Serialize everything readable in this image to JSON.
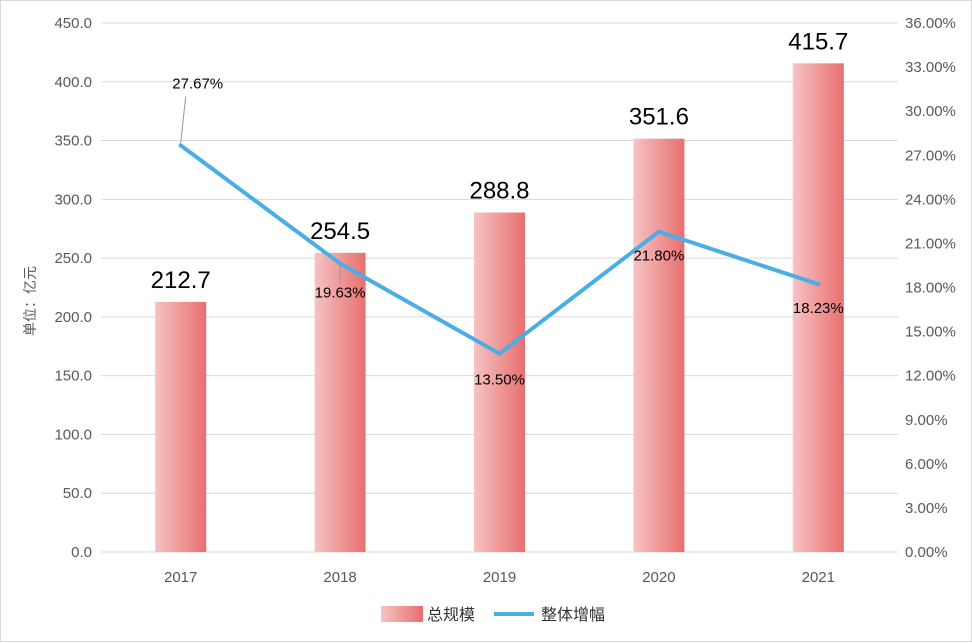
{
  "chart_data": {
    "type": "bar",
    "categories": [
      "2017",
      "2018",
      "2019",
      "2020",
      "2021"
    ],
    "series": [
      {
        "name": "总规模",
        "type": "bar",
        "axis": "left",
        "values": [
          212.7,
          254.5,
          288.8,
          351.6,
          415.7
        ],
        "labels": [
          "212.7",
          "254.5",
          "288.8",
          "351.6",
          "415.7"
        ],
        "color_light": "#f6c3c3",
        "color_dark": "#e86f6f"
      },
      {
        "name": "整体增幅",
        "type": "line",
        "axis": "right",
        "values": [
          27.67,
          19.63,
          13.5,
          21.8,
          18.23
        ],
        "labels": [
          "27.67%",
          "19.63%",
          "13.50%",
          "21.80%",
          "18.23%"
        ],
        "color": "#4aaee6"
      }
    ],
    "ylabel": "单位：亿元",
    "ylim_left": [
      0,
      450
    ],
    "ylim_right": [
      0,
      36
    ],
    "yticks_left": [
      "0.0",
      "50.0",
      "100.0",
      "150.0",
      "200.0",
      "250.0",
      "300.0",
      "350.0",
      "400.0",
      "450.0"
    ],
    "yticks_right": [
      "0.00%",
      "3.00%",
      "6.00%",
      "9.00%",
      "12.00%",
      "15.00%",
      "18.00%",
      "21.00%",
      "24.00%",
      "27.00%",
      "30.00%",
      "33.00%",
      "36.00%"
    ],
    "grid": true,
    "gridline_color": "#d9d9d9",
    "legend_position": "bottom-center"
  }
}
